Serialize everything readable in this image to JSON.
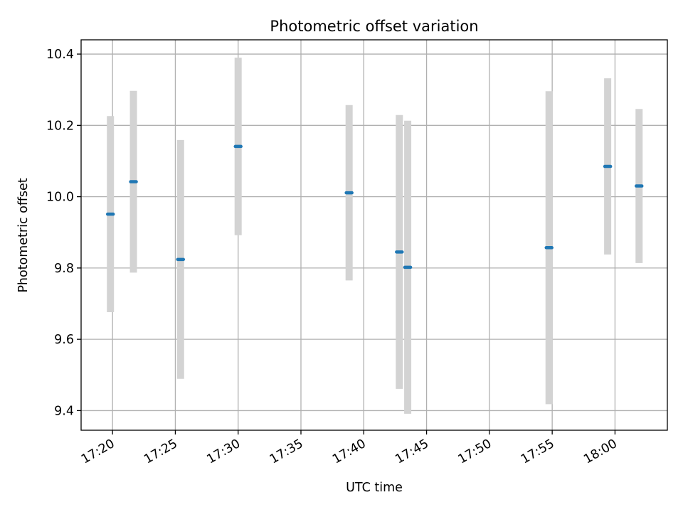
{
  "chart_data": {
    "type": "scatter",
    "title": "Photometric offset variation",
    "xlabel": "UTC time",
    "ylabel": "Photometric offset",
    "x_ticks": [
      "17:20",
      "17:25",
      "17:30",
      "17:35",
      "17:40",
      "17:45",
      "17:50",
      "17:55",
      "18:00"
    ],
    "y_ticks": [
      "9.4",
      "9.6",
      "9.8",
      "10.0",
      "10.2",
      "10.4"
    ],
    "xlim": [
      "17:17:30",
      "18:04:10"
    ],
    "ylim": [
      9.345,
      10.44
    ],
    "grid": true,
    "colors": {
      "points": "#1f77b4",
      "errorbars": "#d3d3d3",
      "grid": "#b0b0b0"
    },
    "points": [
      {
        "time": "17:19:50",
        "y": 9.951,
        "err": 0.275
      },
      {
        "time": "17:21:40",
        "y": 10.042,
        "err": 0.255
      },
      {
        "time": "17:25:25",
        "y": 9.824,
        "err": 0.335
      },
      {
        "time": "17:30:00",
        "y": 10.141,
        "err": 0.249
      },
      {
        "time": "17:38:50",
        "y": 10.011,
        "err": 0.246
      },
      {
        "time": "17:42:50",
        "y": 9.845,
        "err": 0.384
      },
      {
        "time": "17:43:30",
        "y": 9.802,
        "err": 0.411
      },
      {
        "time": "17:54:45",
        "y": 9.857,
        "err": 0.439
      },
      {
        "time": "17:59:25",
        "y": 10.085,
        "err": 0.247
      },
      {
        "time": "18:01:55",
        "y": 10.03,
        "err": 0.216
      }
    ]
  }
}
